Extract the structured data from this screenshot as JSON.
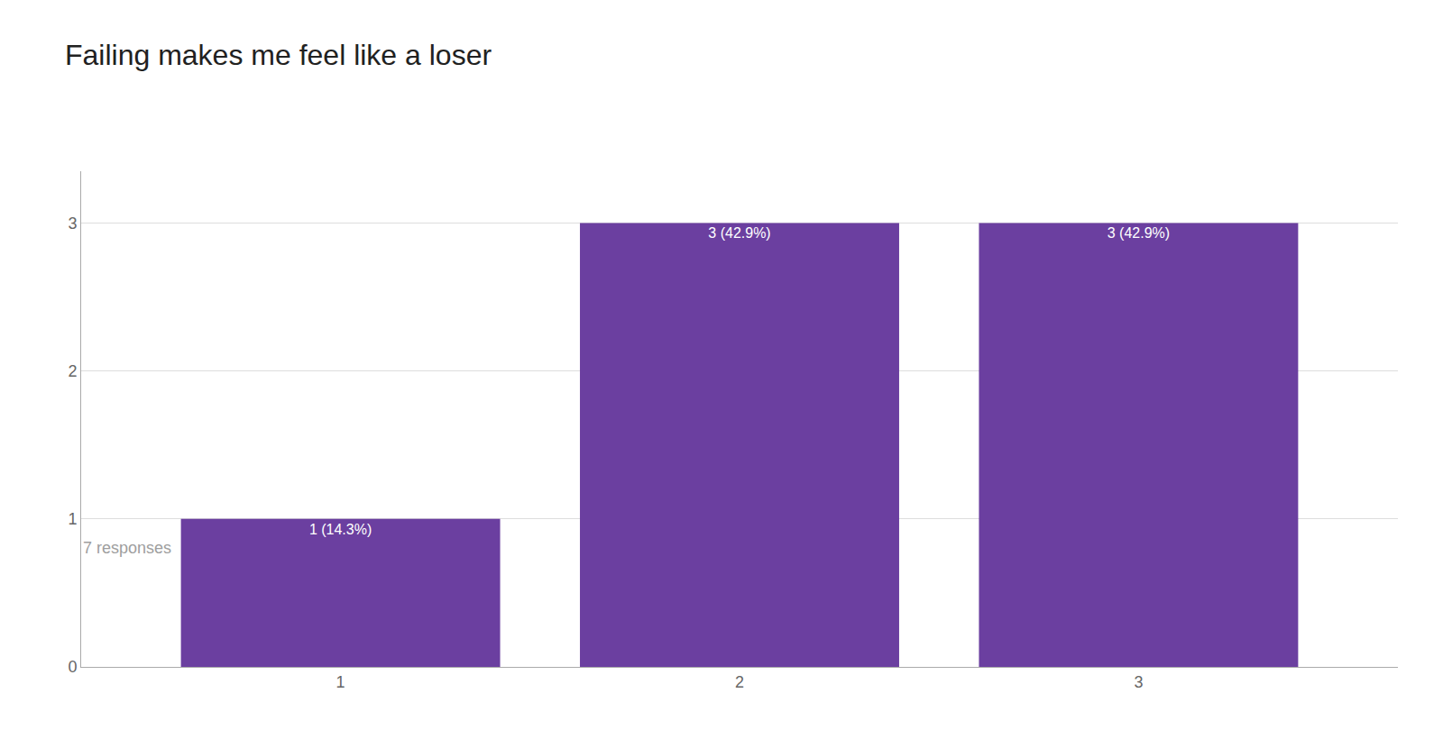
{
  "chart_data": {
    "type": "bar",
    "title": "Failing makes me feel like a loser",
    "subtitle": "7 responses",
    "x": [
      1,
      2,
      3
    ],
    "values": [
      1,
      3,
      3
    ],
    "value_labels": [
      "1 (14.3%)",
      "3 (42.9%)",
      "3 (42.9%)"
    ],
    "data_labels": true,
    "color": "#6B3FA0",
    "xlim": [
      0.35,
      3.65
    ],
    "xticks": [
      1,
      2,
      3
    ],
    "ylim": [
      0,
      3.35
    ],
    "yticks": [
      0,
      1,
      2,
      3
    ],
    "grid": true
  }
}
